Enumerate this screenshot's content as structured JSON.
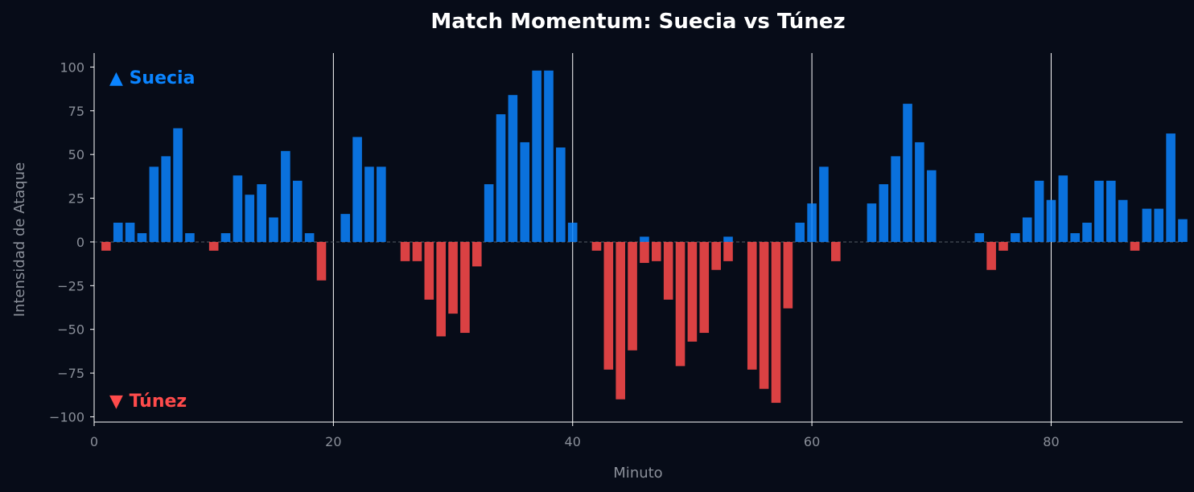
{
  "chart_data": {
    "type": "bar",
    "title": "Match Momentum: Suecia vs Túnez",
    "xlabel": "Minuto",
    "ylabel": "Intensidad de Ataque",
    "xlim": [
      0,
      91
    ],
    "ylim": [
      -103,
      108
    ],
    "xticks": [
      0,
      20,
      40,
      60,
      80
    ],
    "yticks": [
      -100,
      -75,
      -50,
      -25,
      0,
      25,
      50,
      75,
      100
    ],
    "vlines": [
      20,
      40,
      60,
      80
    ],
    "grid": false,
    "legend_placement": "left",
    "labels": {
      "top": "▲ Suecia",
      "bottom": "▼ Túnez"
    },
    "colors": {
      "positive": "#0a84ff",
      "negative": "#ff4b4b",
      "background": "#070c18",
      "vline": "#ffffff",
      "axis": "#ffffff",
      "zero_line": "#555c66"
    },
    "series": [
      {
        "name": "Suecia",
        "x": [
          2,
          3,
          4,
          5,
          6,
          7,
          8,
          11,
          12,
          13,
          14,
          15,
          16,
          17,
          18,
          21,
          22,
          23,
          24,
          33,
          34,
          35,
          36,
          37,
          38,
          39,
          40,
          46,
          53,
          59,
          60,
          61,
          65,
          66,
          67,
          68,
          69,
          70,
          74,
          77,
          78,
          79,
          80,
          81,
          82,
          83,
          84,
          85,
          86,
          88,
          89,
          90,
          91
        ],
        "values": [
          11,
          11,
          5,
          43,
          49,
          65,
          5,
          5,
          38,
          27,
          33,
          14,
          52,
          35,
          5,
          16,
          60,
          43,
          43,
          33,
          73,
          84,
          57,
          98,
          98,
          54,
          11,
          3,
          3,
          11,
          22,
          43,
          22,
          33,
          49,
          79,
          57,
          41,
          5,
          5,
          14,
          35,
          24,
          38,
          5,
          11,
          35,
          35,
          24,
          19,
          19,
          62,
          13
        ]
      },
      {
        "name": "Túnez",
        "x": [
          1,
          10,
          19,
          26,
          27,
          28,
          29,
          30,
          31,
          32,
          42,
          43,
          44,
          45,
          46,
          47,
          48,
          49,
          50,
          51,
          52,
          53,
          55,
          56,
          57,
          58,
          62,
          75,
          76,
          87
        ],
        "values": [
          -5,
          -5,
          -22,
          -11,
          -11,
          -33,
          -54,
          -41,
          -52,
          -14,
          -5,
          -73,
          -90,
          -62,
          -12,
          -11,
          -33,
          -71,
          -57,
          -52,
          -16,
          -11,
          -73,
          -84,
          -92,
          -38,
          -11,
          -16,
          -5,
          -5
        ]
      }
    ]
  }
}
